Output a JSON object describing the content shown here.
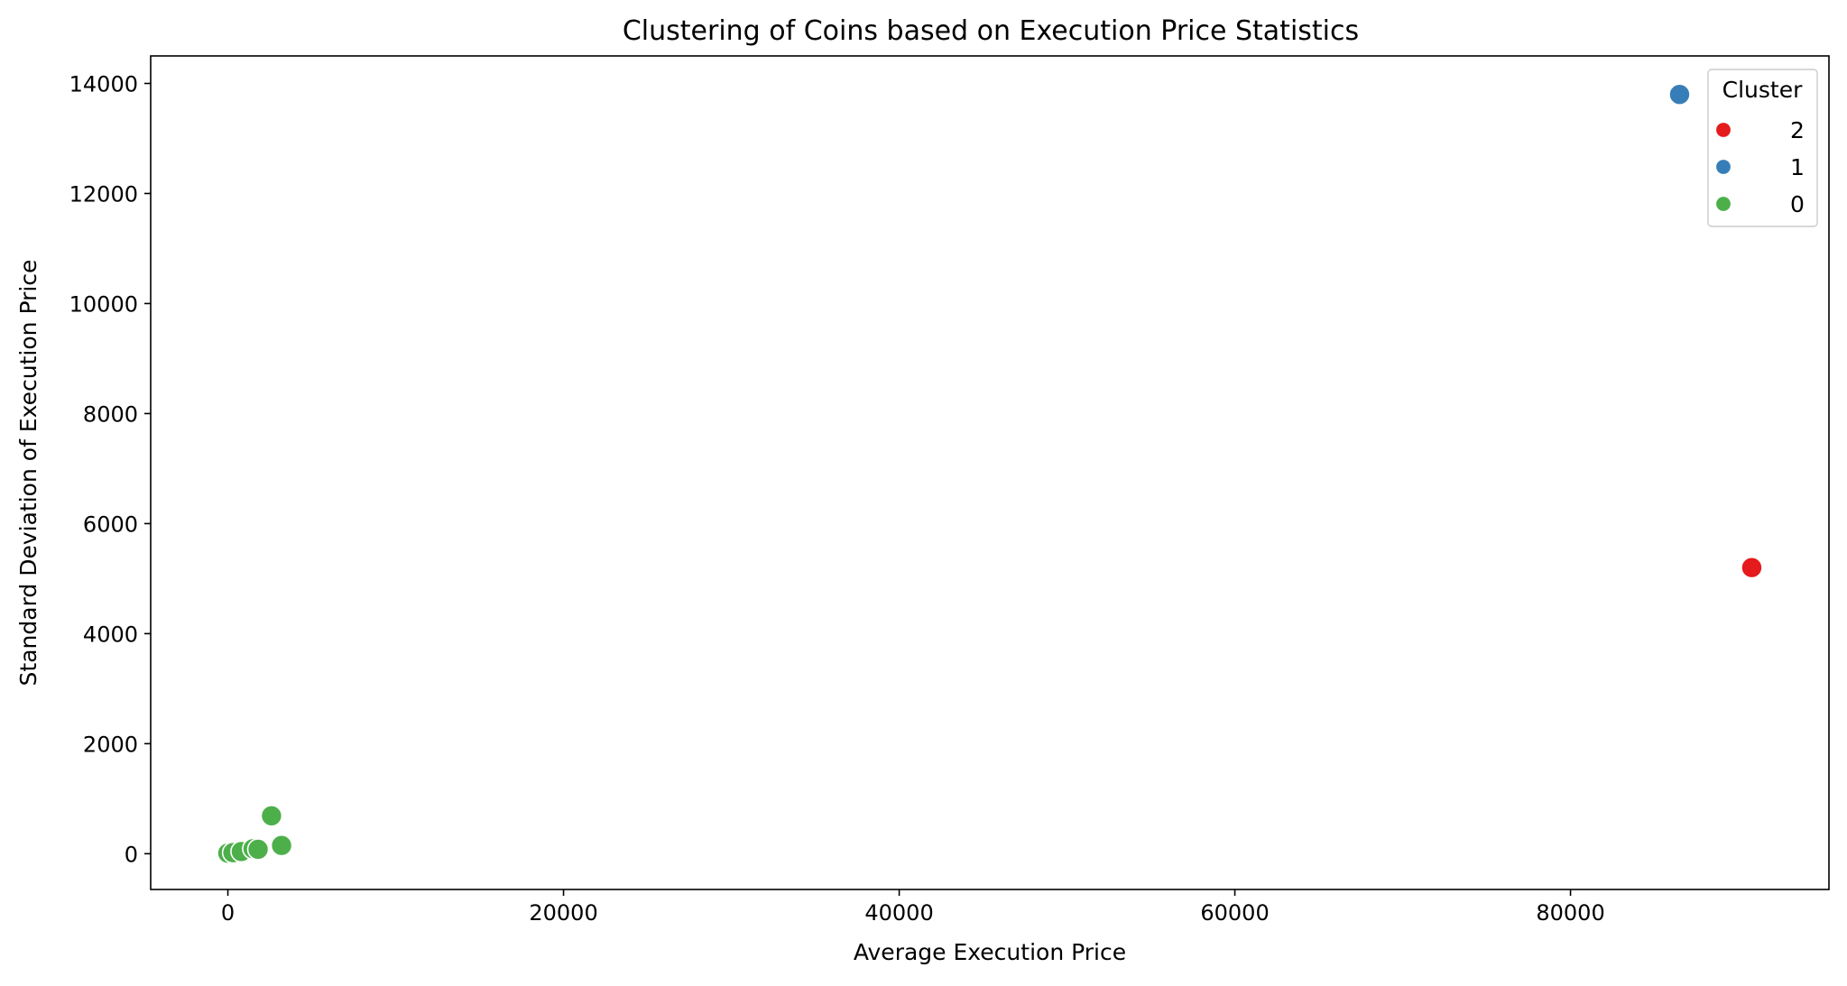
{
  "chart_data": {
    "type": "scatter",
    "title": "Clustering of Coins based on Execution Price Statistics",
    "xlabel": "Average Execution Price",
    "ylabel": "Standard Deviation of Execution Price",
    "xlim": [
      -4600,
      95400
    ],
    "ylim": [
      -650,
      14500
    ],
    "xticks": [
      0,
      20000,
      40000,
      60000,
      80000
    ],
    "yticks": [
      0,
      2000,
      4000,
      6000,
      8000,
      10000,
      12000,
      14000
    ],
    "grid": false,
    "legend": {
      "title": "Cluster",
      "placement": "top-right",
      "entries": [
        "2",
        "1",
        "0"
      ]
    },
    "series": [
      {
        "name": "2",
        "color": "#e41a1c",
        "points": [
          [
            90800,
            5200
          ]
        ]
      },
      {
        "name": "1",
        "color": "#377eb8",
        "points": [
          [
            86500,
            13800
          ]
        ]
      },
      {
        "name": "0",
        "color": "#4daf4a",
        "points": [
          [
            0,
            10
          ],
          [
            300,
            20
          ],
          [
            800,
            40
          ],
          [
            1500,
            90
          ],
          [
            1800,
            80
          ],
          [
            2600,
            690
          ],
          [
            3200,
            150
          ]
        ]
      }
    ]
  }
}
